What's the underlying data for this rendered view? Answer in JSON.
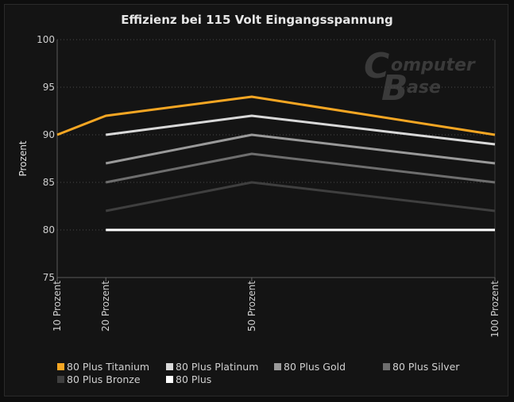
{
  "title": "Effizienz bei 115 Volt Eingangsspannung",
  "watermark": {
    "line1_initial": "C",
    "line1_rest": "omputer",
    "line2_initial": "B",
    "line2_rest": "ase"
  },
  "chart_data": {
    "type": "line",
    "title": "Effizienz bei 115 Volt Eingangsspannung",
    "xlabel": "",
    "ylabel": "Prozent",
    "x": [
      10,
      20,
      50,
      100
    ],
    "x_tick_labels": [
      "10 Prozent",
      "20 Prozent",
      "50 Prozent",
      "100 Prozent"
    ],
    "ylim": [
      75,
      100
    ],
    "y_ticks": [
      75,
      80,
      85,
      90,
      95,
      100
    ],
    "grid": "horizontal dotted",
    "legend_position": "bottom",
    "series": [
      {
        "name": "80 Plus Titanium",
        "color": "#f5a623",
        "points": [
          [
            10,
            90
          ],
          [
            20,
            92
          ],
          [
            50,
            94
          ],
          [
            100,
            90
          ]
        ]
      },
      {
        "name": "80 Plus Platinum",
        "color": "#d9d9d9",
        "points": [
          [
            20,
            90
          ],
          [
            50,
            92
          ],
          [
            100,
            89
          ]
        ]
      },
      {
        "name": "80 Plus Gold",
        "color": "#9a9a9a",
        "points": [
          [
            20,
            87
          ],
          [
            50,
            90
          ],
          [
            100,
            87
          ]
        ]
      },
      {
        "name": "80 Plus Silver",
        "color": "#6e6e6e",
        "points": [
          [
            20,
            85
          ],
          [
            50,
            88
          ],
          [
            100,
            85
          ]
        ]
      },
      {
        "name": "80 Plus Bronze",
        "color": "#3f3f3f",
        "points": [
          [
            20,
            82
          ],
          [
            50,
            85
          ],
          [
            100,
            82
          ]
        ]
      },
      {
        "name": "80 Plus",
        "color": "#ffffff",
        "points": [
          [
            20,
            80
          ],
          [
            50,
            80
          ],
          [
            100,
            80
          ]
        ]
      }
    ]
  }
}
